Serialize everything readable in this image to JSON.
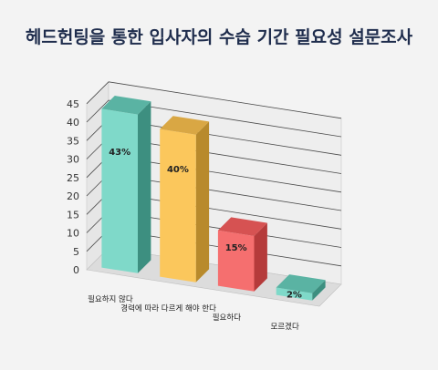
{
  "chart_data": {
    "type": "bar",
    "title": "헤드헌팅을 통한 입사자의 수습 기간 필요성 설문조사",
    "categories": [
      "필요하지 않다",
      "경력에 따라 다르게 해야 한다",
      "필요하다",
      "모르겠다"
    ],
    "values": [
      43,
      40,
      15,
      2
    ],
    "data_labels": [
      "43%",
      "40%",
      "15%",
      "2%"
    ],
    "ylim": [
      0,
      45
    ],
    "yticks": [
      0,
      5,
      10,
      15,
      20,
      25,
      30,
      35,
      40,
      45
    ],
    "grid": true,
    "legend": "none",
    "colors": [
      {
        "front": "#7fd9c9",
        "side": "#3d8f80",
        "top": "#5ab3a3"
      },
      {
        "front": "#fbc75c",
        "side": "#b88a2c",
        "top": "#d9a744"
      },
      {
        "front": "#f56f6f",
        "side": "#b53b3b",
        "top": "#d65252"
      },
      {
        "front": "#7fd9c9",
        "side": "#3d8f80",
        "top": "#5ab3a3"
      }
    ]
  }
}
